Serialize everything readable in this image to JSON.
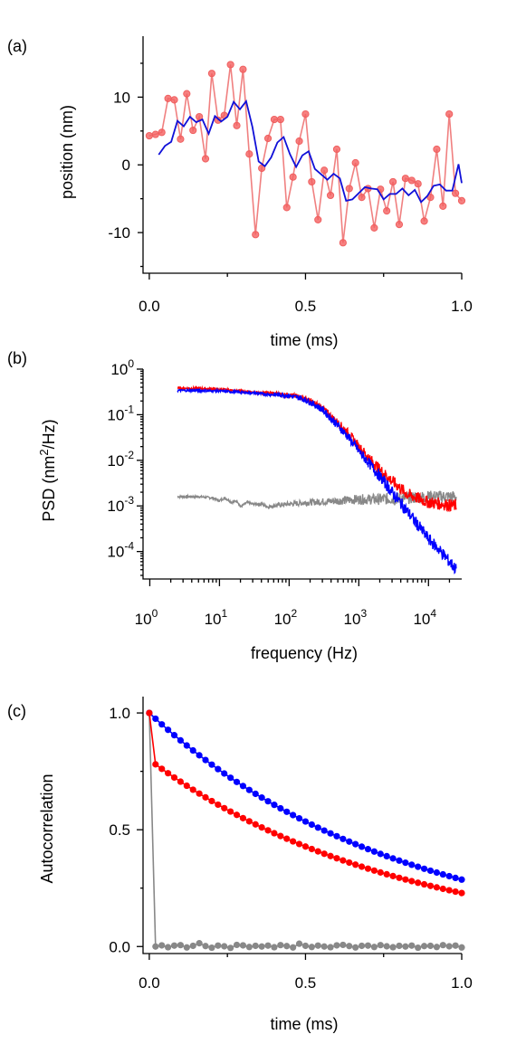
{
  "chart_data": [
    {
      "panel_label": "(a)",
      "type": "line",
      "xlabel": "time (ms)",
      "ylabel": "position (nm)",
      "xlim": [
        -0.02,
        1.0
      ],
      "ylim": [
        -16,
        19
      ],
      "xticks": [
        0,
        0.5,
        1.0
      ],
      "xtick_labels": [
        "0.0",
        "0.5",
        "1.0"
      ],
      "yticks": [
        -10,
        0,
        10
      ],
      "ytick_labels": [
        "-10",
        "0",
        "10"
      ],
      "series": [
        {
          "color": "#f08080",
          "marker": "circle",
          "x": [
            0.0,
            0.02,
            0.04,
            0.06,
            0.08,
            0.1,
            0.12,
            0.14,
            0.16,
            0.18,
            0.2,
            0.22,
            0.24,
            0.26,
            0.28,
            0.3,
            0.32,
            0.34,
            0.36,
            0.38,
            0.4,
            0.42,
            0.44,
            0.46,
            0.48,
            0.5,
            0.52,
            0.54,
            0.56,
            0.58,
            0.6,
            0.62,
            0.64,
            0.66,
            0.68,
            0.7,
            0.72,
            0.74,
            0.76,
            0.78,
            0.8,
            0.82,
            0.84,
            0.86,
            0.88,
            0.9,
            0.92,
            0.94,
            0.96,
            0.98,
            1.0
          ],
          "values": [
            4.3,
            4.5,
            4.8,
            9.8,
            9.6,
            3.8,
            10.5,
            5.1,
            7.1,
            0.9,
            13.5,
            6.6,
            7.3,
            14.8,
            5.8,
            14.1,
            1.6,
            -10.3,
            -0.5,
            3.9,
            6.7,
            6.7,
            -6.3,
            -1.8,
            3.5,
            7.5,
            -2.5,
            -8.1,
            -0.8,
            -4.5,
            2.3,
            -11.5,
            -3.5,
            0.3,
            -4.8,
            -3.5,
            -9.3,
            -3.6,
            -6.8,
            -2.5,
            -8.8,
            -2.0,
            -2.3,
            -2.8,
            -8.3,
            -4.8,
            2.3,
            -6.1,
            7.5,
            -4.2,
            -5.3
          ]
        },
        {
          "color": "#1010d8",
          "marker": "none",
          "x": [
            0.03,
            0.05,
            0.07,
            0.09,
            0.11,
            0.13,
            0.15,
            0.17,
            0.19,
            0.21,
            0.23,
            0.25,
            0.27,
            0.29,
            0.31,
            0.33,
            0.35,
            0.37,
            0.39,
            0.41,
            0.43,
            0.45,
            0.47,
            0.49,
            0.51,
            0.53,
            0.55,
            0.57,
            0.59,
            0.61,
            0.63,
            0.65,
            0.67,
            0.69,
            0.71,
            0.73,
            0.75,
            0.77,
            0.79,
            0.81,
            0.83,
            0.85,
            0.87,
            0.89,
            0.91,
            0.93,
            0.95,
            0.97,
            0.99,
            1.0
          ],
          "values": [
            1.5,
            2.8,
            3.4,
            6.5,
            5.7,
            7.1,
            6.3,
            6.7,
            4.6,
            7.2,
            6.4,
            7.1,
            9.3,
            8.2,
            9.4,
            5.6,
            0.5,
            -0.2,
            1.1,
            3.3,
            4.1,
            1.6,
            -0.3,
            1.4,
            2.0,
            -0.6,
            -1.4,
            -2.2,
            -1.3,
            -2.0,
            -5.3,
            -5.1,
            -4.2,
            -3.3,
            -3.5,
            -3.6,
            -5.1,
            -4.3,
            -4.3,
            -3.5,
            -4.5,
            -3.7,
            -5.5,
            -4.6,
            -3.1,
            -2.9,
            -3.8,
            -3.8,
            0.1,
            -2.7
          ]
        }
      ]
    },
    {
      "panel_label": "(b)",
      "type": "line",
      "xlabel": "frequency (Hz)",
      "ylabel_parts": [
        "PSD (nm",
        "2",
        "/Hz)"
      ],
      "x_scale": "log",
      "y_scale": "log",
      "xlim": [
        0.8,
        30000
      ],
      "ylim": [
        2.5e-05,
        1.0
      ],
      "xticks": [
        1,
        10,
        100,
        1000,
        10000
      ],
      "xtick_labels": [
        [
          "10",
          "0"
        ],
        [
          "10",
          "1"
        ],
        [
          "10",
          "2"
        ],
        [
          "10",
          "3"
        ],
        [
          "10",
          "4"
        ]
      ],
      "yticks": [
        1,
        0.1,
        0.01,
        0.001,
        0.0001
      ],
      "ytick_labels": [
        [
          "10",
          "0"
        ],
        [
          "10",
          "-1"
        ],
        [
          "10",
          "-2"
        ],
        [
          "10",
          "-3"
        ],
        [
          "10",
          "-4"
        ]
      ],
      "series": [
        {
          "color": "#ff0000",
          "x": [
            2.5,
            5,
            10,
            20,
            30,
            50,
            80,
            100,
            150,
            200,
            300,
            500,
            700,
            1000,
            1500,
            2000,
            3000,
            5000,
            10000,
            25000
          ],
          "values": [
            0.38,
            0.38,
            0.36,
            0.33,
            0.31,
            0.3,
            0.28,
            0.27,
            0.24,
            0.2,
            0.14,
            0.066,
            0.04,
            0.02,
            0.01,
            0.0063,
            0.0035,
            0.0018,
            0.0012,
            0.001
          ]
        },
        {
          "color": "#0000ff",
          "x": [
            2.5,
            5,
            10,
            20,
            30,
            50,
            80,
            100,
            150,
            200,
            300,
            500,
            700,
            1000,
            1500,
            2000,
            3000,
            5000,
            10000,
            15000,
            25000
          ],
          "values": [
            0.34,
            0.34,
            0.33,
            0.31,
            0.3,
            0.28,
            0.27,
            0.26,
            0.23,
            0.19,
            0.13,
            0.058,
            0.033,
            0.016,
            0.0076,
            0.0045,
            0.002,
            0.00075,
            0.00019,
            0.0001,
            4e-05
          ]
        },
        {
          "color": "#888888",
          "x": [
            2.5,
            5,
            8,
            10,
            12,
            15,
            18,
            20,
            25,
            30,
            40,
            50,
            70,
            100,
            200,
            500,
            1000,
            2000,
            5000,
            10000,
            25000
          ],
          "values": [
            0.0016,
            0.0016,
            0.0015,
            0.0013,
            0.0015,
            0.0012,
            0.0013,
            0.00095,
            0.0012,
            0.0011,
            0.0011,
            0.00095,
            0.00105,
            0.0011,
            0.0012,
            0.0013,
            0.0014,
            0.0014,
            0.0015,
            0.0016,
            0.0016
          ]
        }
      ]
    },
    {
      "panel_label": "(c)",
      "type": "line",
      "xlabel": "time (ms)",
      "ylabel": "Autocorrelation",
      "xlim": [
        -0.02,
        1.0
      ],
      "ylim": [
        -0.03,
        1.07
      ],
      "xticks": [
        0,
        0.5,
        1.0
      ],
      "xtick_labels": [
        "0.0",
        "0.5",
        "1.0"
      ],
      "yticks": [
        0,
        0.5,
        1.0
      ],
      "ytick_labels": [
        "0.0",
        "0.5",
        "1.0"
      ],
      "series": [
        {
          "color": "#0000ff",
          "marker": "circle",
          "model": "exp",
          "tau": 0.8,
          "amplitude": 1.0,
          "lag_step": 0.02,
          "points": 51
        },
        {
          "color": "#ff0000",
          "marker": "circle",
          "model": "exp_with_jump",
          "tau": 0.8,
          "amplitude": 0.78,
          "lag_step": 0.02,
          "points": 51
        },
        {
          "color": "#888888",
          "marker": "circle",
          "model": "delta",
          "lag_step": 0.02,
          "points": 51,
          "values_after_zero": [
            0.0,
            0.005,
            -0.003,
            0.004,
            0.006,
            -0.004,
            0.003,
            0.014,
            0.002,
            -0.005,
            0.004,
            0.001,
            -0.006,
            0.007,
            0.005,
            -0.002,
            0.003,
            0.0,
            0.004,
            -0.003,
            0.006,
            0.002,
            -0.004,
            0.012,
            0.003,
            -0.002,
            0.004,
            0.0,
            -0.003,
            0.005,
            0.007,
            0.002,
            -0.004,
            0.003,
            0.004,
            -0.002,
            0.006,
            0.001,
            -0.003,
            0.003,
            0.0,
            0.004,
            -0.005,
            0.002,
            0.003,
            -0.002,
            0.006,
            0.001,
            0.004,
            -0.004
          ]
        }
      ]
    }
  ]
}
